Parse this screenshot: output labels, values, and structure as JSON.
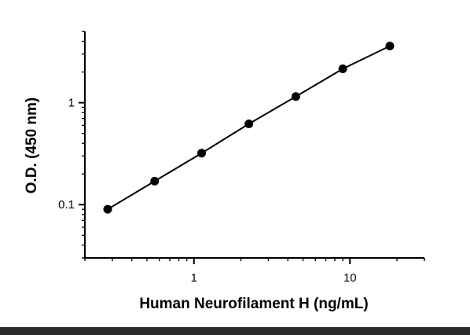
{
  "chart_data": {
    "type": "scatter",
    "title": "",
    "xlabel": "Human  Neurofilament H (ng/mL)",
    "ylabel": "O.D. (450 nm)",
    "x_scale": "log",
    "y_scale": "log",
    "xlim": [
      0.2,
      30
    ],
    "ylim": [
      0.03,
      5
    ],
    "x_ticks": [
      {
        "value": 1,
        "label": "1"
      },
      {
        "value": 10,
        "label": "10"
      }
    ],
    "y_ticks": [
      {
        "value": 0.1,
        "label": "0.1"
      },
      {
        "value": 1,
        "label": "1"
      }
    ],
    "grid": false,
    "legend": "none",
    "series": [
      {
        "x": [
          0.28,
          0.56,
          1.12,
          2.25,
          4.5,
          9,
          18
        ],
        "y": [
          0.09,
          0.17,
          0.32,
          0.62,
          1.15,
          2.15,
          3.6
        ]
      }
    ],
    "colors": {
      "marker": "#000000",
      "line": "#000000",
      "axis": "#000000"
    }
  }
}
